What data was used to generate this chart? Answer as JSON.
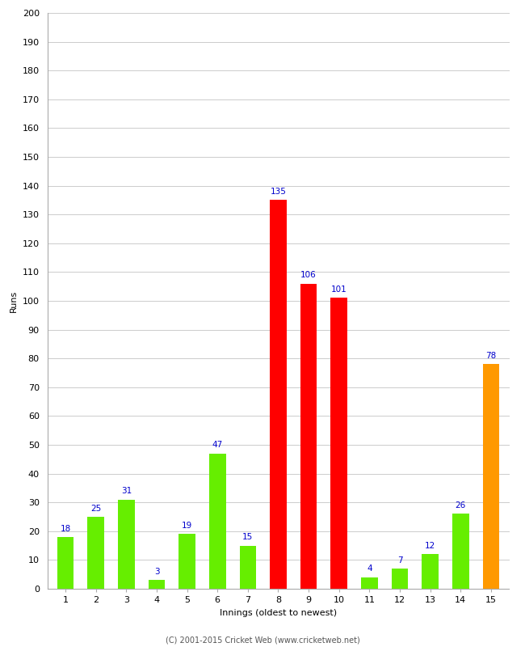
{
  "title": "",
  "xlabel": "Innings (oldest to newest)",
  "ylabel": "Runs",
  "categories": [
    "1",
    "2",
    "3",
    "4",
    "5",
    "6",
    "7",
    "8",
    "9",
    "10",
    "11",
    "12",
    "13",
    "14",
    "15"
  ],
  "values": [
    18,
    25,
    31,
    3,
    19,
    47,
    15,
    135,
    106,
    101,
    4,
    7,
    12,
    26,
    78
  ],
  "bar_colors": [
    "#66ee00",
    "#66ee00",
    "#66ee00",
    "#66ee00",
    "#66ee00",
    "#66ee00",
    "#66ee00",
    "#ff0000",
    "#ff0000",
    "#ff0000",
    "#66ee00",
    "#66ee00",
    "#66ee00",
    "#66ee00",
    "#ff9900"
  ],
  "ylim": [
    0,
    200
  ],
  "yticks": [
    0,
    10,
    20,
    30,
    40,
    50,
    60,
    70,
    80,
    90,
    100,
    110,
    120,
    130,
    140,
    150,
    160,
    170,
    180,
    190,
    200
  ],
  "background_color": "#ffffff",
  "grid_color": "#cccccc",
  "label_color": "#0000cc",
  "label_fontsize": 7.5,
  "axis_fontsize": 8,
  "ylabel_fontsize": 8,
  "xlabel_fontsize": 8,
  "bar_width": 0.55,
  "footer": "(C) 2001-2015 Cricket Web (www.cricketweb.net)"
}
